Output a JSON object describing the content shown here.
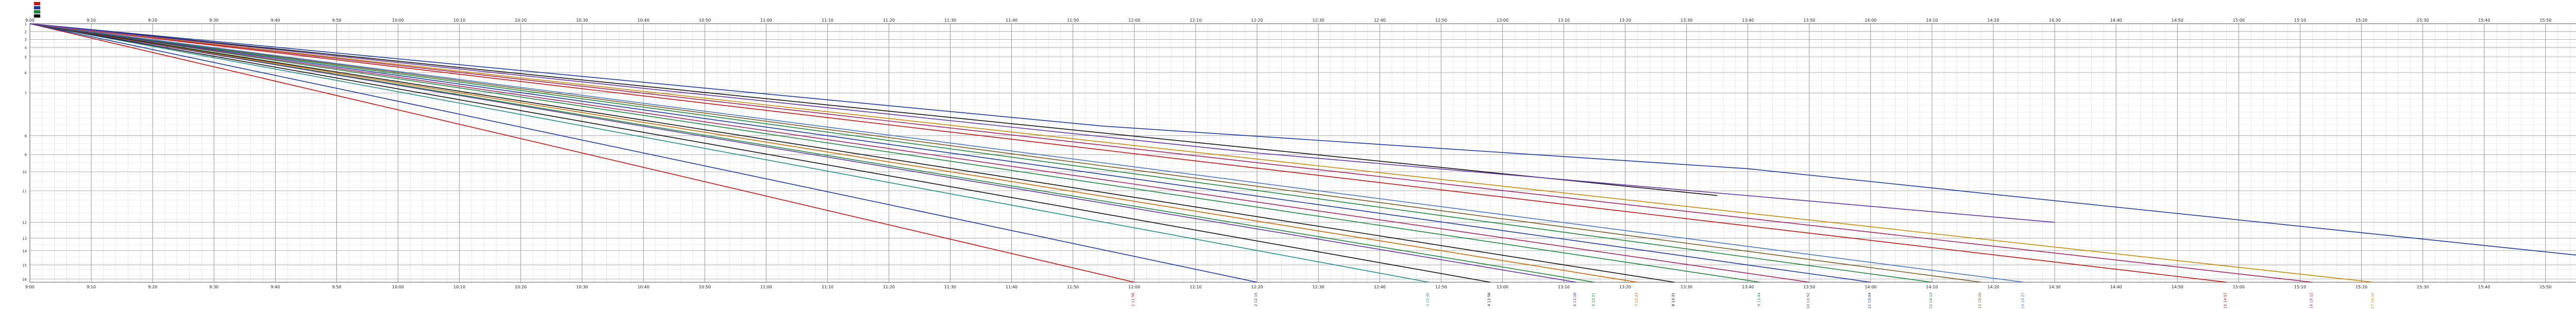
{
  "chart_data": {
    "type": "line",
    "title": "",
    "xlabel": "",
    "ylabel": "",
    "x_ticks": [
      "9:00",
      "9:10",
      "9:20",
      "9:30",
      "9:40",
      "9:50",
      "10:00",
      "10:10",
      "10:20",
      "10:30",
      "10:40",
      "10:50",
      "11:00",
      "11:10",
      "11:20",
      "11:30",
      "11:40",
      "11:50",
      "12:00",
      "12:10",
      "12:20",
      "12:30",
      "12:40",
      "12:50",
      "13:00",
      "13:10",
      "13:20",
      "13:30",
      "13:40",
      "13:50",
      "14:00",
      "14:10",
      "14:20",
      "14:30",
      "14:40",
      "14:50",
      "15:00",
      "15:10",
      "15:20",
      "15:30",
      "15:40",
      "15:50",
      "16:00"
    ],
    "x_range_minutes": [
      0,
      420
    ],
    "y_range": [
      0,
      16.4
    ],
    "grid": true,
    "stations": [
      {
        "name": "1",
        "pos": 0
      },
      {
        "name": "2",
        "pos": 0.5
      },
      {
        "name": "3",
        "pos": 1.0
      },
      {
        "name": "4",
        "pos": 1.5
      },
      {
        "name": "5",
        "pos": 2.1
      },
      {
        "name": "6",
        "pos": 3.1
      },
      {
        "name": "7",
        "pos": 4.4
      },
      {
        "name": "8",
        "pos": 7.1
      },
      {
        "name": "9",
        "pos": 8.3
      },
      {
        "name": "10",
        "pos": 9.4
      },
      {
        "name": "11",
        "pos": 10.6
      },
      {
        "name": "12",
        "pos": 12.6
      },
      {
        "name": "13",
        "pos": 13.6
      },
      {
        "name": "14",
        "pos": 14.4
      },
      {
        "name": "15",
        "pos": 15.3
      },
      {
        "name": "16",
        "pos": 16.2
      }
    ],
    "series": [
      {
        "color": "#cc1111",
        "points": [
          [
            0,
            0
          ],
          [
            180,
            16.4
          ]
        ],
        "label": "1 11:56"
      },
      {
        "color": "#1a3aa8",
        "points": [
          [
            0,
            0
          ],
          [
            200,
            16.4
          ]
        ],
        "label": "2 12:15"
      },
      {
        "color": "#1f8f8f",
        "points": [
          [
            0,
            0
          ],
          [
            228,
            16.4
          ]
        ],
        "label": "3 12:45"
      },
      {
        "color": "#111111",
        "points": [
          [
            0,
            0
          ],
          [
            238,
            16.4
          ]
        ],
        "label": "4 12:58"
      },
      {
        "color": "#1a8a3a",
        "points": [
          [
            0,
            0
          ],
          [
            255,
            16.4
          ]
        ],
        "label": "5 13:11"
      },
      {
        "color": "#6633aa",
        "points": [
          [
            0,
            0
          ],
          [
            252,
            16.4
          ]
        ],
        "label": "6 13:09"
      },
      {
        "color": "#cc6a00",
        "points": [
          [
            0,
            0
          ],
          [
            262,
            16.4
          ]
        ],
        "label": "7 13:23"
      },
      {
        "color": "#111111",
        "points": [
          [
            0,
            0
          ],
          [
            268,
            16.4
          ]
        ],
        "label": "8 13:31"
      },
      {
        "color": "#1a8a3a",
        "points": [
          [
            0,
            0
          ],
          [
            282,
            16.4
          ]
        ],
        "label": "9 13:44"
      },
      {
        "color": "#aa2266",
        "points": [
          [
            0,
            0
          ],
          [
            290,
            16.4
          ]
        ],
        "label": "10 13:52"
      },
      {
        "color": "#1a3aa8",
        "points": [
          [
            0,
            0
          ],
          [
            300,
            16.4
          ]
        ],
        "label": "11 14:04"
      },
      {
        "color": "#1a8a3a",
        "points": [
          [
            0,
            0
          ],
          [
            310,
            16.4
          ]
        ],
        "label": "12 14:13"
      },
      {
        "color": "#7a5a20",
        "points": [
          [
            0,
            0
          ],
          [
            318,
            16.4
          ]
        ],
        "label": "13 14:20"
      },
      {
        "color": "#4477cc",
        "points": [
          [
            0,
            0
          ],
          [
            325,
            16.4
          ]
        ],
        "label": "14 14:27"
      },
      {
        "color": "#cc1111",
        "points": [
          [
            0,
            0
          ],
          [
            358,
            16.4
          ]
        ],
        "label": "15 14:57"
      },
      {
        "color": "#aa2266",
        "points": [
          [
            0,
            0
          ],
          [
            372,
            16.4
          ]
        ],
        "label": "16 15:12"
      },
      {
        "color": "#cc8a00",
        "points": [
          [
            0,
            0
          ],
          [
            382,
            16.4
          ]
        ],
        "label": "17 15:22"
      },
      {
        "color": "#111111",
        "points": [
          [
            0,
            0
          ],
          [
            275,
            10.9
          ]
        ],
        "label": ""
      },
      {
        "color": "#1a3aa8",
        "points": [
          [
            0,
            0
          ],
          [
            175,
            6.5
          ],
          [
            280,
            9.2
          ],
          [
            418,
            14.8
          ]
        ],
        "label": ""
      },
      {
        "color": "#6633aa",
        "points": [
          [
            0,
            0
          ],
          [
            200,
            8.2
          ],
          [
            330,
            12.6
          ]
        ],
        "label": ""
      }
    ]
  }
}
